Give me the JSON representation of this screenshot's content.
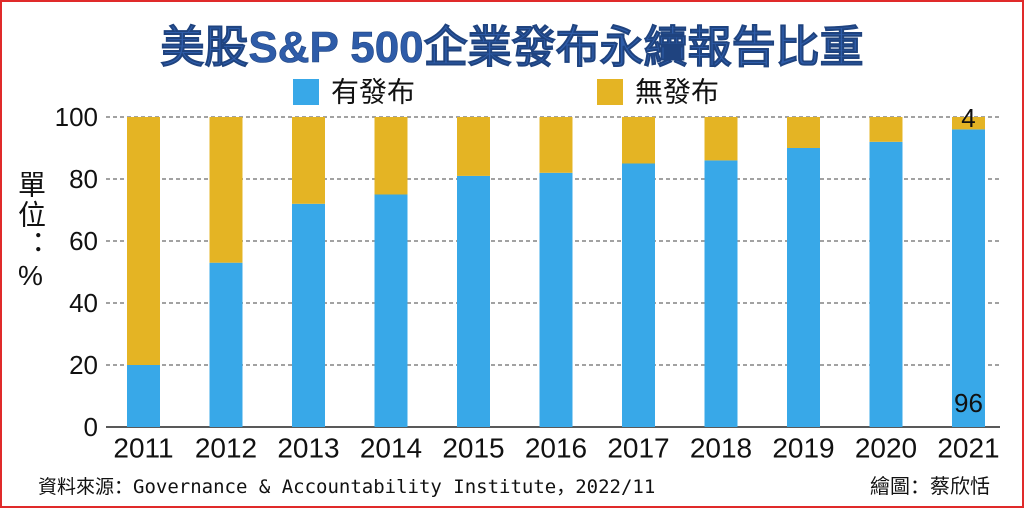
{
  "chart_data": {
    "type": "bar",
    "stacked": true,
    "title": "美股S&P 500企業發布永續報告比重",
    "categories": [
      "2011",
      "2012",
      "2013",
      "2014",
      "2015",
      "2016",
      "2017",
      "2018",
      "2019",
      "2020",
      "2021"
    ],
    "series": [
      {
        "name": "有發布",
        "color": "#38a8e8",
        "values": [
          20,
          53,
          72,
          75,
          81,
          82,
          85,
          86,
          90,
          92,
          96
        ]
      },
      {
        "name": "無發布",
        "color": "#e4b424",
        "values": [
          80,
          47,
          28,
          25,
          19,
          18,
          15,
          14,
          10,
          8,
          4
        ]
      }
    ],
    "ylabel": "單位：%",
    "ylim": [
      0,
      100
    ],
    "yticks": [
      0,
      20,
      40,
      60,
      80,
      100
    ],
    "grid": true,
    "legend_position": "top-center",
    "annotations": [
      {
        "category": "2021",
        "series": "無發布",
        "text": "4"
      },
      {
        "category": "2021",
        "series": "有發布",
        "text": "96"
      }
    ]
  },
  "footer": {
    "source": "資料來源：Governance & Accountability Institute，2022/11",
    "credit": "繪圖：蔡欣恬"
  }
}
